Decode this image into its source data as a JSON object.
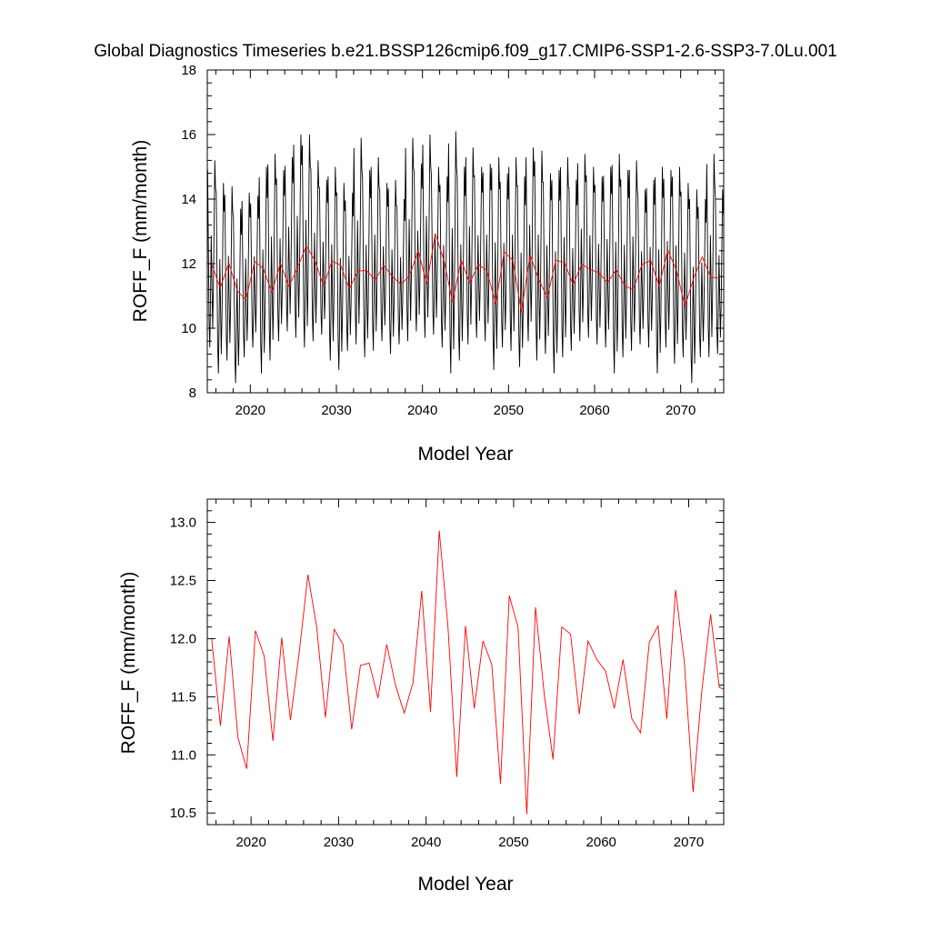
{
  "title": "Global Diagnostics Timeseries b.e21.BSSP126cmip6.f09_g17.CMIP6-SSP1-2.6-SSP3-7.0Lu.001",
  "colors": {
    "monthly": "#000000",
    "annual": "#ff0000"
  },
  "chart_data": [
    {
      "type": "line",
      "xlabel": "Model Year",
      "ylabel": "ROFF_F (mm/month)",
      "xlim": [
        2015,
        2075
      ],
      "ylim": [
        8,
        18
      ],
      "xticks": [
        2020,
        2030,
        2040,
        2050,
        2060,
        2070
      ],
      "yticks": [
        8,
        10,
        12,
        14,
        16,
        18
      ],
      "ytick_labels": [
        "8",
        "10",
        "12",
        "14",
        "16",
        "18"
      ],
      "grid": false,
      "series": [
        {
          "color": "#000000",
          "resolution": "monthly",
          "x_start": 2015.04,
          "x_step": 0.08333,
          "annual_peaks": [
            15.2,
            14.5,
            14.4,
            13.7,
            14.2,
            14.1,
            15.0,
            15.4,
            14.9,
            15.3,
            16.0,
            16.0,
            15.2,
            14.6,
            15.0,
            14.5,
            14.2,
            15.9,
            14.9,
            15.3,
            14.5,
            14.6,
            14.0,
            15.9,
            15.1,
            16.0,
            15.0,
            14.7,
            16.1,
            15.0,
            15.6,
            15.0,
            15.1,
            15.3,
            14.8,
            15.3,
            14.7,
            15.6,
            15.5,
            14.8,
            14.9,
            15.3,
            14.6,
            15.4,
            15.0,
            14.7,
            15.0,
            15.4,
            14.9,
            15.2,
            14.3,
            14.6,
            15.0,
            14.9,
            15.0,
            14.5,
            14.3,
            14.0,
            15.4,
            14.3
          ],
          "annual_troughs": [
            9.4,
            8.6,
            9.0,
            8.3,
            9.1,
            9.4,
            8.6,
            9.0,
            9.6,
            9.9,
            9.7,
            9.4,
            9.6,
            9.8,
            9.0,
            8.7,
            9.3,
            9.5,
            9.1,
            9.3,
            9.6,
            9.2,
            9.5,
            9.6,
            9.9,
            9.7,
            9.8,
            9.4,
            8.6,
            9.0,
            9.5,
            9.7,
            9.6,
            8.7,
            9.4,
            9.3,
            8.8,
            9.6,
            9.0,
            9.2,
            8.6,
            9.1,
            9.3,
            9.6,
            9.7,
            9.5,
            9.4,
            8.6,
            9.1,
            9.3,
            9.5,
            9.4,
            8.6,
            9.4,
            8.9,
            9.1,
            8.3,
            9.1,
            9.1,
            9.2
          ]
        },
        {
          "color": "#ff0000",
          "resolution": "annual",
          "x": [
            2015.5,
            2016.5,
            2017.5,
            2018.5,
            2019.5,
            2020.5,
            2021.5,
            2022.5,
            2023.5,
            2024.5,
            2025.5,
            2026.5,
            2027.5,
            2028.5,
            2029.5,
            2030.5,
            2031.5,
            2032.5,
            2033.5,
            2034.5,
            2035.5,
            2036.5,
            2037.5,
            2038.5,
            2039.5,
            2040.5,
            2041.5,
            2042.5,
            2043.5,
            2044.5,
            2045.5,
            2046.5,
            2047.5,
            2048.5,
            2049.5,
            2050.5,
            2051.5,
            2052.5,
            2053.5,
            2054.5,
            2055.5,
            2056.5,
            2057.5,
            2058.5,
            2059.5,
            2060.5,
            2061.5,
            2062.5,
            2063.5,
            2064.5,
            2065.5,
            2066.5,
            2067.5,
            2068.5,
            2069.5,
            2070.5,
            2071.5,
            2072.5,
            2073.5,
            2074.5
          ],
          "values": [
            12.0,
            11.25,
            12.02,
            11.15,
            10.88,
            12.07,
            11.85,
            11.12,
            12.01,
            11.3,
            11.88,
            12.55,
            12.1,
            11.32,
            12.08,
            11.95,
            11.22,
            11.77,
            11.79,
            11.49,
            11.95,
            11.6,
            11.36,
            11.62,
            12.41,
            11.37,
            12.93,
            12.1,
            10.81,
            12.11,
            11.4,
            11.98,
            11.78,
            10.75,
            12.37,
            12.1,
            10.49,
            12.27,
            11.52,
            10.96,
            12.1,
            12.04,
            11.35,
            11.98,
            11.82,
            11.72,
            11.4,
            11.82,
            11.31,
            11.19,
            11.97,
            12.11,
            11.31,
            12.42,
            11.8,
            10.68,
            11.55,
            12.21,
            11.58,
            11.55
          ]
        }
      ]
    },
    {
      "type": "line",
      "xlabel": "Model Year",
      "ylabel": "ROFF_F (mm/month)",
      "xlim": [
        2015,
        2074
      ],
      "ylim": [
        10.4,
        13.2
      ],
      "xticks": [
        2020,
        2030,
        2040,
        2050,
        2060,
        2070
      ],
      "yticks": [
        10.5,
        11.0,
        11.5,
        12.0,
        12.5,
        13.0
      ],
      "ytick_labels": [
        "10.5",
        "11.0",
        "11.5",
        "12.0",
        "12.5",
        "13.0"
      ],
      "grid": false,
      "series": [
        {
          "color": "#ff0000",
          "resolution": "annual",
          "x": [
            2015.5,
            2016.5,
            2017.5,
            2018.5,
            2019.5,
            2020.5,
            2021.5,
            2022.5,
            2023.5,
            2024.5,
            2025.5,
            2026.5,
            2027.5,
            2028.5,
            2029.5,
            2030.5,
            2031.5,
            2032.5,
            2033.5,
            2034.5,
            2035.5,
            2036.5,
            2037.5,
            2038.5,
            2039.5,
            2040.5,
            2041.5,
            2042.5,
            2043.5,
            2044.5,
            2045.5,
            2046.5,
            2047.5,
            2048.5,
            2049.5,
            2050.5,
            2051.5,
            2052.5,
            2053.5,
            2054.5,
            2055.5,
            2056.5,
            2057.5,
            2058.5,
            2059.5,
            2060.5,
            2061.5,
            2062.5,
            2063.5,
            2064.5,
            2065.5,
            2066.5,
            2067.5,
            2068.5,
            2069.5,
            2070.5,
            2071.5,
            2072.5,
            2073.5,
            2074.5
          ],
          "values": [
            12.0,
            11.25,
            12.02,
            11.15,
            10.88,
            12.07,
            11.85,
            11.12,
            12.01,
            11.3,
            11.88,
            12.55,
            12.1,
            11.32,
            12.08,
            11.95,
            11.22,
            11.77,
            11.79,
            11.49,
            11.95,
            11.6,
            11.36,
            11.62,
            12.41,
            11.37,
            12.93,
            12.1,
            10.81,
            12.11,
            11.4,
            11.98,
            11.78,
            10.75,
            12.37,
            12.1,
            10.49,
            12.27,
            11.52,
            10.96,
            12.1,
            12.04,
            11.35,
            11.98,
            11.82,
            11.72,
            11.4,
            11.82,
            11.31,
            11.19,
            11.97,
            12.11,
            11.31,
            12.42,
            11.8,
            10.68,
            11.55,
            12.21,
            11.58,
            11.55
          ]
        }
      ]
    }
  ]
}
